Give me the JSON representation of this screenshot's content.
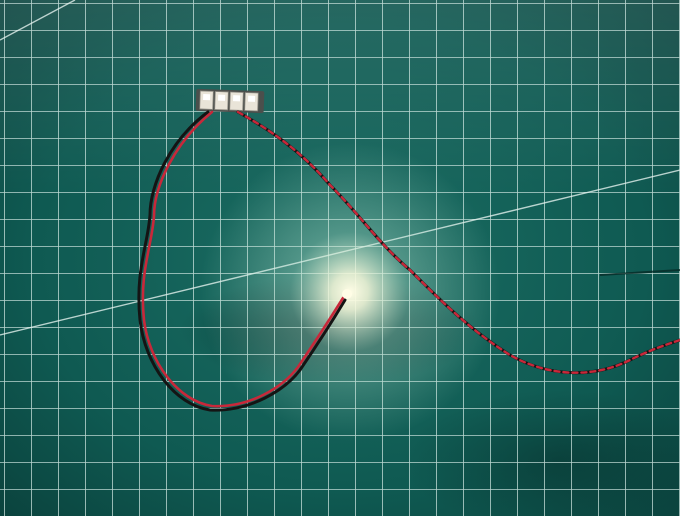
{
  "scene": {
    "subject": "led-strip-with-twisted-wire",
    "colors": {
      "mat_base": "#0f5a52",
      "mat_dark": "#0a3f3a",
      "grid_line": "#d8ece8",
      "wire_red": "#c8283a",
      "wire_black": "#141414",
      "led_glow": "#fffde6",
      "connector_body": "#e9e4d8"
    }
  }
}
